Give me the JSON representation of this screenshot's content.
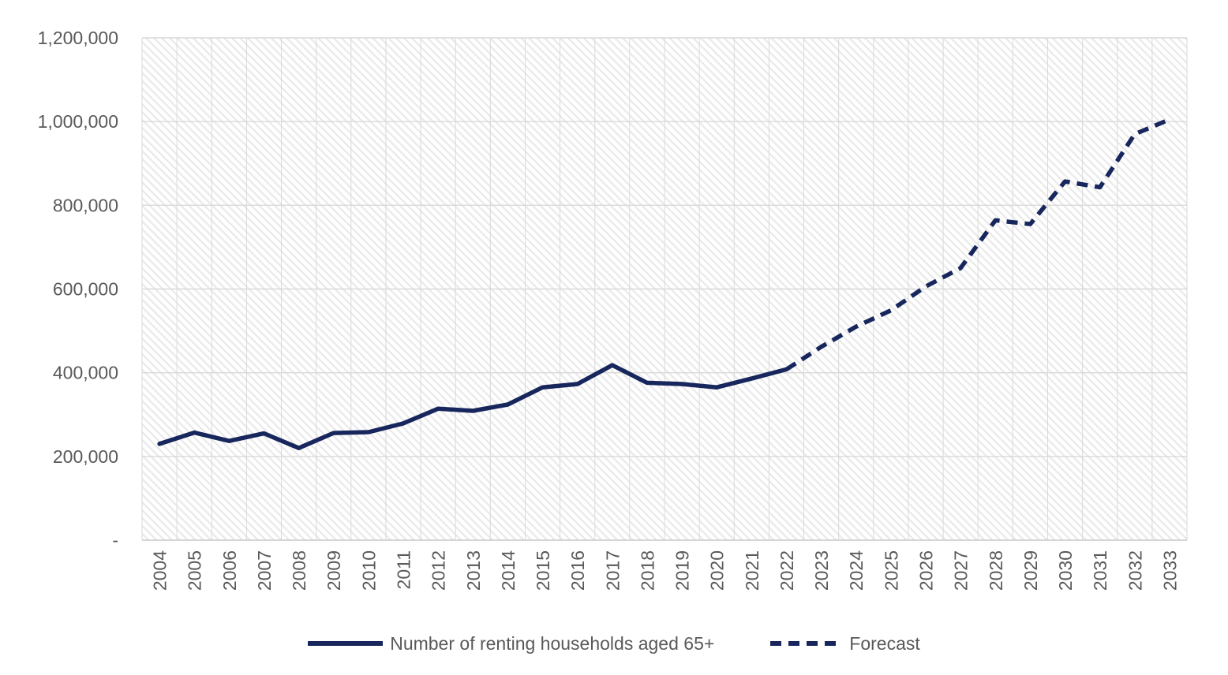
{
  "chart_data": {
    "type": "line",
    "title": "",
    "x_labels": [
      "2004",
      "2005",
      "2006",
      "2007",
      "2008",
      "2009",
      "2010",
      "2011",
      "2012",
      "2013",
      "2014",
      "2015",
      "2016",
      "2017",
      "2018",
      "2019",
      "2020",
      "2021",
      "2022",
      "2023",
      "2024",
      "2025",
      "2026",
      "2027",
      "2028",
      "2029",
      "2030",
      "2031",
      "2032",
      "2033"
    ],
    "y_axis": {
      "min": 0,
      "max": 1200000,
      "tick_step": 200000,
      "tick_labels_bottom_to_top": [
        "-",
        "200,000",
        "400,000",
        "600,000",
        "800,000",
        "1,000,000",
        "1,200,000"
      ]
    },
    "series": [
      {
        "name": "Number of renting households aged 65+",
        "line_style": "solid",
        "color": "#17265C",
        "years": [
          2004,
          2005,
          2006,
          2007,
          2008,
          2009,
          2010,
          2011,
          2012,
          2013,
          2014,
          2015,
          2016,
          2017,
          2018,
          2019,
          2020,
          2021,
          2022
        ],
        "values": [
          230000,
          257000,
          237000,
          255000,
          220000,
          256000,
          258000,
          279000,
          314000,
          309000,
          324000,
          365000,
          373000,
          418000,
          376000,
          373000,
          365000,
          386000,
          408000
        ]
      },
      {
        "name": "Forecast",
        "line_style": "dashed",
        "color": "#17265C",
        "years": [
          2022,
          2023,
          2024,
          2025,
          2026,
          2027,
          2028,
          2029,
          2030,
          2031,
          2032,
          2033
        ],
        "values": [
          408000,
          462000,
          510000,
          549000,
          606000,
          650000,
          764000,
          755000,
          857000,
          843000,
          970000,
          1005000
        ]
      }
    ],
    "grid": "horizontal-major-and-vertical-category",
    "plot_background": "diagonal-hatch",
    "legend_position": "bottom-center"
  },
  "legend": {
    "items": [
      {
        "label": "Number of renting households aged 65+",
        "style": "solid"
      },
      {
        "label": "Forecast",
        "style": "dashed"
      }
    ]
  },
  "colors": {
    "line": "#17265C",
    "axis_text": "#595959",
    "gridline": "#D9D9D9",
    "axis_line": "#C9C9C9",
    "hatch": "#E9E9E9",
    "background": "#FFFFFF"
  }
}
